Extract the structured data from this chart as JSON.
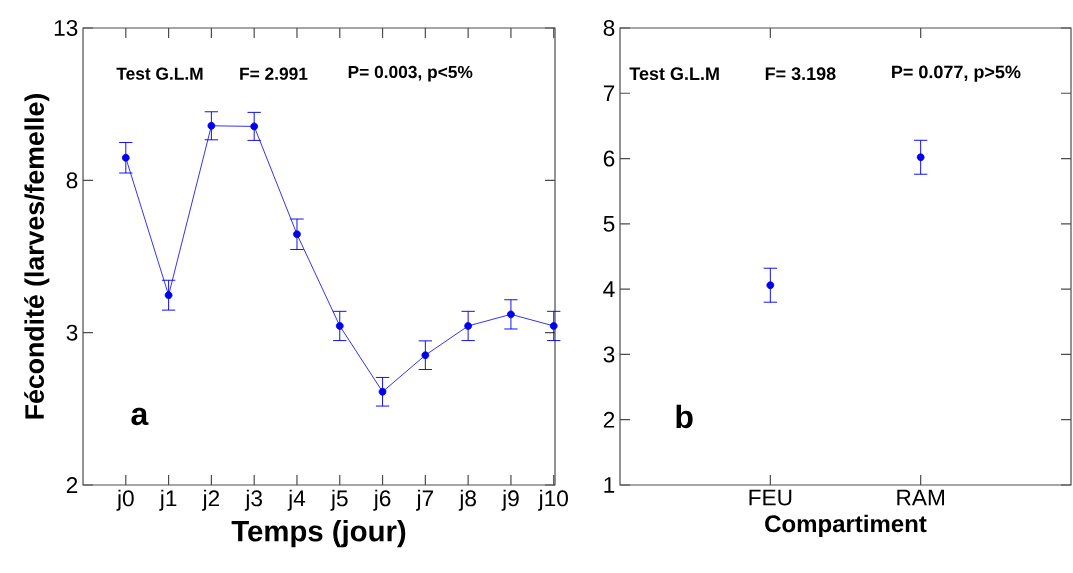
{
  "chart_data": [
    {
      "type": "line",
      "xlabel": "Temps (jour)",
      "ylabel": "Fécondité (larves/femelle)",
      "categories": [
        "j0",
        "j1",
        "j2",
        "j3",
        "j4",
        "j5",
        "j6",
        "j7",
        "j8",
        "j9",
        "j10"
      ],
      "series": [
        {
          "color": "#0000ee",
          "values": [
            8.74,
            4.23,
            9.79,
            9.77,
            6.23,
            3.22,
            1.06,
            2.26,
            3.22,
            3.6,
            3.22
          ],
          "errors": [
            0.5,
            0.49,
            0.46,
            0.46,
            0.5,
            0.48,
            0.47,
            0.47,
            0.48,
            0.48,
            0.48
          ]
        }
      ],
      "ylim": [
        -2,
        13
      ],
      "yticks": [
        {
          "value": -2,
          "label": "2"
        },
        3,
        8,
        13
      ],
      "marker": "circle",
      "line_style": "solid",
      "annotations": [
        "Test G.L.M",
        "F= 2.991",
        "P= 0.003, p<5%",
        "a"
      ]
    },
    {
      "type": "scatter",
      "xlabel": "Compartiment",
      "categories": [
        "FEU",
        "RAM"
      ],
      "series": [
        {
          "color": "#0000ee",
          "values": [
            4.06,
            6.02
          ],
          "errors": [
            0.26,
            0.26
          ]
        }
      ],
      "ylim": [
        1,
        8
      ],
      "yticks": [
        1,
        2,
        3,
        4,
        5,
        6,
        7,
        8
      ],
      "marker": "circle",
      "annotations": [
        "Test G.L.M",
        "F= 3.198",
        "P= 0.077,  p>5%",
        "b"
      ]
    }
  ]
}
